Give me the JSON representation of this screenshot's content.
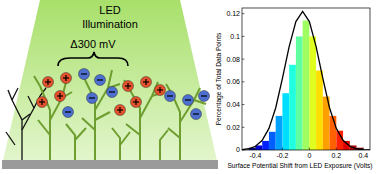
{
  "chart_data": {
    "type": "histogram",
    "annotations": [
      "LED",
      "Illumination",
      "Δ300 mV"
    ],
    "x_label": "Surface Potential Shift from LED Exposure (Volts)",
    "y_label": "Percentage of Total Data Points",
    "bins": [
      -0.45,
      -0.4,
      -0.35,
      -0.3,
      -0.25,
      -0.2,
      -0.15,
      -0.1,
      -0.05,
      0,
      0.05,
      0.1,
      0.15,
      0.2,
      0.25,
      0.3,
      0.35,
      0.4
    ],
    "values": [
      0.002,
      0.004,
      0.008,
      0.016,
      0.03,
      0.05,
      0.075,
      0.1,
      0.114,
      0.1,
      0.07,
      0.047,
      0.03,
      0.017,
      0.008,
      0.004,
      0.002
    ],
    "colors": [
      "#00008f",
      "#0000d0",
      "#0020ff",
      "#0060ff",
      "#00a0ff",
      "#00dfff",
      "#20ffdf",
      "#60ff9f",
      "#9fff60",
      "#dfff20",
      "#ffdf00",
      "#ffa000",
      "#ff6000",
      "#ff2000",
      "#df0000",
      "#b00000",
      "#800000"
    ],
    "fit": {
      "type": "line",
      "color": "#000000",
      "x": [
        -0.5,
        -0.45,
        -0.4,
        -0.35,
        -0.3,
        -0.25,
        -0.2,
        -0.15,
        -0.1,
        -0.05,
        0,
        0.05,
        0.1,
        0.15,
        0.2,
        0.25,
        0.3,
        0.35,
        0.4,
        0.45
      ],
      "values": [
        0.0003,
        0.0011,
        0.0033,
        0.0085,
        0.019,
        0.037,
        0.063,
        0.091,
        0.113,
        0.122,
        0.113,
        0.091,
        0.063,
        0.037,
        0.019,
        0.0085,
        0.0033,
        0.0011,
        0.0003,
        0.0001
      ]
    },
    "xlim": [
      -0.5,
      0.45
    ],
    "xticks": [
      -0.4,
      -0.2,
      0,
      0.2,
      0.4
    ],
    "ylim": [
      0,
      0.125
    ],
    "yticks": [
      0,
      0.02,
      0.04,
      0.06,
      0.08,
      0.1,
      0.12
    ],
    "grid": false
  }
}
